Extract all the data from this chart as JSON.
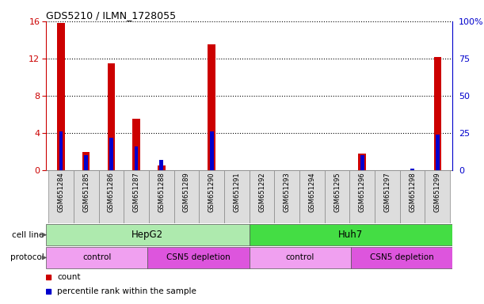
{
  "title": "GDS5210 / ILMN_1728055",
  "samples": [
    "GSM651284",
    "GSM651285",
    "GSM651286",
    "GSM651287",
    "GSM651288",
    "GSM651289",
    "GSM651290",
    "GSM651291",
    "GSM651292",
    "GSM651293",
    "GSM651294",
    "GSM651295",
    "GSM651296",
    "GSM651297",
    "GSM651298",
    "GSM651299"
  ],
  "count_values": [
    15.8,
    2.0,
    11.5,
    5.5,
    0.5,
    0.0,
    13.5,
    0.0,
    0.0,
    0.0,
    0.0,
    0.0,
    1.8,
    0.0,
    0.0,
    12.2
  ],
  "percentile_values": [
    26,
    10,
    22,
    16,
    7,
    0,
    26,
    0,
    0,
    0,
    0,
    0,
    10,
    0,
    1,
    24
  ],
  "ylim_left": [
    0,
    16
  ],
  "ylim_right": [
    0,
    100
  ],
  "yticks_left": [
    0,
    4,
    8,
    12,
    16
  ],
  "yticks_right": [
    0,
    25,
    50,
    75,
    100
  ],
  "ytick_labels_right": [
    "0",
    "25",
    "50",
    "75",
    "100%"
  ],
  "cell_line_groups": [
    {
      "label": "HepG2",
      "start": 0,
      "end": 8,
      "color": "#aeeaae"
    },
    {
      "label": "Huh7",
      "start": 8,
      "end": 16,
      "color": "#44dd44"
    }
  ],
  "protocol_groups": [
    {
      "label": "control",
      "start": 0,
      "end": 4,
      "color": "#f0a0f0"
    },
    {
      "label": "CSN5 depletion",
      "start": 4,
      "end": 8,
      "color": "#dd55dd"
    },
    {
      "label": "control",
      "start": 8,
      "end": 12,
      "color": "#f0a0f0"
    },
    {
      "label": "CSN5 depletion",
      "start": 12,
      "end": 16,
      "color": "#dd55dd"
    }
  ],
  "bar_color_red": "#cc0000",
  "bar_color_blue": "#0000cc",
  "bg_color": "#ffffff",
  "plot_bg_color": "#ffffff",
  "axis_color_left": "#cc0000",
  "axis_color_right": "#0000cc",
  "legend_items": [
    {
      "label": "count",
      "color": "#cc0000"
    },
    {
      "label": "percentile rank within the sample",
      "color": "#0000cc"
    }
  ],
  "cell_line_label": "cell line",
  "protocol_label": "protocol",
  "xtick_bg": "#e0e0e0"
}
